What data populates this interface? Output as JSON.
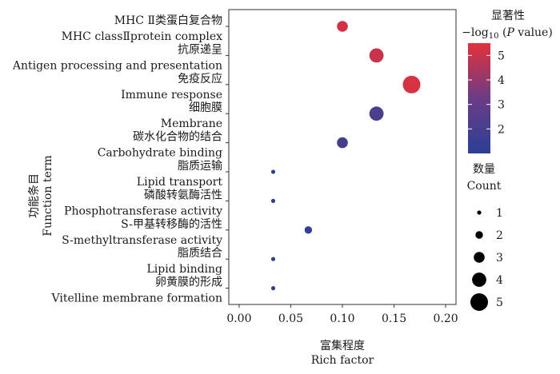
{
  "chart_data": {
    "type": "scatter",
    "categories": [
      {
        "cn": "MHC Ⅱ类蛋白复合物",
        "en": "MHC classⅡprotein complex"
      },
      {
        "cn": "抗原递呈",
        "en": "Antigen processing and presentation"
      },
      {
        "cn": "免疫反应",
        "en": "Immune response"
      },
      {
        "cn": "细胞膜",
        "en": "Membrane"
      },
      {
        "cn": "碳水化合物的结合",
        "en": "Carbohydrate binding"
      },
      {
        "cn": "脂质运输",
        "en": "Lipid transport"
      },
      {
        "cn": "磷酸转氨酶活性",
        "en": "Phosphotransferase activity"
      },
      {
        "cn": "S-甲基转移酶的活性",
        "en": "S-methyltransferase activity"
      },
      {
        "cn": "脂质结合",
        "en": "Lipid binding"
      },
      {
        "cn": "卵黄膜的形成",
        "en": "Vitelline membrane formation"
      }
    ],
    "points": [
      {
        "x": 0.1,
        "count": 3,
        "neglog10p": 5.2
      },
      {
        "x": 0.133,
        "count": 4,
        "neglog10p": 5.0
      },
      {
        "x": 0.167,
        "count": 5,
        "neglog10p": 5.3
      },
      {
        "x": 0.133,
        "count": 4,
        "neglog10p": 2.2
      },
      {
        "x": 0.1,
        "count": 3,
        "neglog10p": 1.9
      },
      {
        "x": 0.033,
        "count": 1,
        "neglog10p": 1.1
      },
      {
        "x": 0.033,
        "count": 1,
        "neglog10p": 1.1
      },
      {
        "x": 0.067,
        "count": 2,
        "neglog10p": 1.3
      },
      {
        "x": 0.033,
        "count": 1,
        "neglog10p": 1.1
      },
      {
        "x": 0.033,
        "count": 1,
        "neglog10p": 1.1
      }
    ],
    "xlim": [
      -0.01,
      0.21
    ],
    "xticks": [
      "0.00",
      "0.05",
      "0.10",
      "0.15",
      "0.20"
    ],
    "xtick_values": [
      0,
      0.05,
      0.1,
      0.15,
      0.2
    ],
    "xlabel_cn": "富集程度",
    "xlabel_en": "Rich factor",
    "ylabel_cn": "功能条目",
    "ylabel_en": "Function term",
    "color_legend": {
      "title_cn": "显著性",
      "title_en_prefix": "−log",
      "title_en_sub": "10",
      "title_en_suffix": " (",
      "title_en_italic": "P",
      "title_en_end": " value)",
      "ticks": [
        "5",
        "4",
        "3",
        "2"
      ],
      "tick_values": [
        5,
        4,
        3,
        2
      ],
      "range": [
        1.0,
        5.5
      ],
      "color_low": "#2b3f95",
      "color_mid": "#6b3c86",
      "color_high": "#e2313a"
    },
    "size_legend": {
      "title_cn": "数量",
      "title_en": "Count",
      "values": [
        1,
        2,
        3,
        4,
        5
      ],
      "labels": [
        "1",
        "2",
        "3",
        "4",
        "5"
      ]
    }
  }
}
